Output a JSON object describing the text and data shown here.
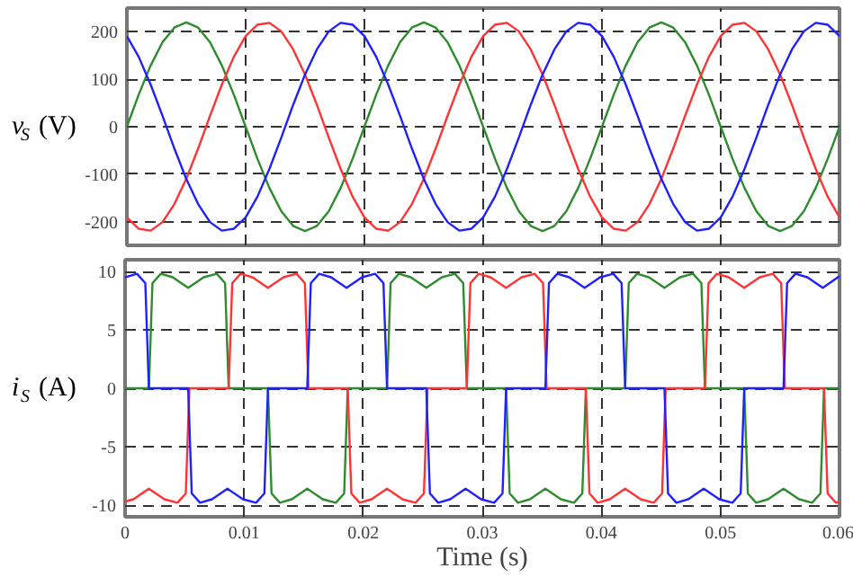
{
  "chart_data": [
    {
      "type": "line",
      "ylabel": "v$_{S}$ (V)",
      "xlim": [
        0,
        0.06
      ],
      "xticks": [
        0,
        0.01,
        0.02,
        0.03,
        0.04,
        0.05,
        0.06
      ],
      "ylim": [
        -250,
        250
      ],
      "yticks": [
        -200,
        -100,
        0,
        100,
        200
      ],
      "grid": true,
      "tick_labels": "y",
      "x": [
        0,
        0.001,
        0.002,
        0.003,
        0.004,
        0.005,
        0.006,
        0.007,
        0.008,
        0.009,
        0.01,
        0.011,
        0.012,
        0.013,
        0.014,
        0.015,
        0.016,
        0.017,
        0.018,
        0.019,
        0.02,
        0.021,
        0.022,
        0.023,
        0.024,
        0.025,
        0.026,
        0.027,
        0.028,
        0.029,
        0.03,
        0.031,
        0.032,
        0.033,
        0.034,
        0.035,
        0.036,
        0.037,
        0.038,
        0.039,
        0.04,
        0.041,
        0.042,
        0.043,
        0.044,
        0.045,
        0.046,
        0.047,
        0.048,
        0.049,
        0.05,
        0.051,
        0.052,
        0.053,
        0.054,
        0.055,
        0.056,
        0.057,
        0.058,
        0.059,
        0.06
      ],
      "series": [
        {
          "color": "#2e8b2e",
          "values": [
            0,
            68,
            129,
            178,
            209,
            220,
            209,
            178,
            129,
            68,
            0,
            -68,
            -129,
            -178,
            -209,
            -220,
            -209,
            -178,
            -129,
            -68,
            0,
            68,
            129,
            178,
            209,
            220,
            209,
            178,
            129,
            68,
            0,
            -68,
            -129,
            -178,
            -209,
            -220,
            -209,
            -178,
            -129,
            -68,
            0,
            68,
            129,
            178,
            209,
            220,
            209,
            178,
            129,
            68,
            0,
            -68,
            -129,
            -178,
            -209,
            -220,
            -209,
            -178,
            -129,
            -68,
            0
          ]
        },
        {
          "color": "#ff3333",
          "values": [
            -191,
            -215,
            -219,
            -201,
            -163,
            -110,
            -46,
            23,
            89,
            147,
            191,
            215,
            219,
            201,
            163,
            110,
            46,
            -23,
            -89,
            -147,
            -191,
            -215,
            -219,
            -201,
            -163,
            -110,
            -46,
            23,
            89,
            147,
            191,
            215,
            219,
            201,
            163,
            110,
            46,
            -23,
            -89,
            -147,
            -191,
            -215,
            -219,
            -201,
            -163,
            -110,
            -46,
            23,
            89,
            147,
            191,
            215,
            219,
            201,
            163,
            110,
            46,
            -23,
            -89,
            -147,
            -191
          ]
        },
        {
          "color": "#2020ff",
          "values": [
            191,
            147,
            89,
            23,
            -46,
            -110,
            -163,
            -201,
            -219,
            -215,
            -191,
            -147,
            -89,
            -23,
            46,
            110,
            163,
            201,
            219,
            215,
            191,
            147,
            89,
            23,
            -46,
            -110,
            -163,
            -201,
            -219,
            -215,
            -191,
            -147,
            -89,
            -23,
            46,
            110,
            163,
            201,
            219,
            215,
            191,
            147,
            89,
            23,
            -46,
            -110,
            -163,
            -201,
            -219,
            -215,
            -191,
            -147,
            -89,
            -23,
            46,
            110,
            163,
            201,
            219,
            215,
            191
          ]
        }
      ]
    },
    {
      "type": "line",
      "xlabel": "Time (s)",
      "ylabel": "i$_{S}$ (A)",
      "xlim": [
        0,
        0.06
      ],
      "xticks": [
        0,
        0.01,
        0.02,
        0.03,
        0.04,
        0.05,
        0.06
      ],
      "ylim": [
        -11,
        11
      ],
      "yticks": [
        -10,
        -5,
        0,
        5,
        10
      ],
      "grid": true,
      "series": [
        {
          "color": "#2e8b2e",
          "x": [
            0,
            0.002,
            0.0023,
            0.003,
            0.004,
            0.0053,
            0.0066,
            0.0077,
            0.0084,
            0.0087,
            0.012,
            0.0123,
            0.013,
            0.014,
            0.0153,
            0.0166,
            0.0177,
            0.0184,
            0.0187,
            0.022,
            0.0223,
            0.023,
            0.024,
            0.0253,
            0.0266,
            0.0277,
            0.0284,
            0.0287,
            0.032,
            0.0323,
            0.033,
            0.034,
            0.0353,
            0.0366,
            0.0377,
            0.0384,
            0.0387,
            0.042,
            0.0423,
            0.043,
            0.044,
            0.0453,
            0.0466,
            0.0477,
            0.0484,
            0.0487,
            0.052,
            0.0523,
            0.053,
            0.054,
            0.0553,
            0.0566,
            0.0577,
            0.0584,
            0.0587,
            0.06
          ],
          "values": [
            0,
            0,
            9.0,
            9.8,
            9.5,
            8.6,
            9.5,
            9.8,
            9.0,
            0,
            0,
            -9.0,
            -9.8,
            -9.5,
            -8.6,
            -9.5,
            -9.8,
            -9.0,
            0,
            0,
            9.0,
            9.8,
            9.5,
            8.6,
            9.5,
            9.8,
            9.0,
            0,
            0,
            -9.0,
            -9.8,
            -9.5,
            -8.6,
            -9.5,
            -9.8,
            -9.0,
            0,
            0,
            9.0,
            9.8,
            9.5,
            8.6,
            9.5,
            9.8,
            9.0,
            0,
            0,
            -9.0,
            -9.8,
            -9.5,
            -8.6,
            -9.5,
            -9.8,
            -9.0,
            0,
            0
          ]
        },
        {
          "color": "#ff3333",
          "x": [
            0,
            0.0007,
            0.002,
            0.0033,
            0.0044,
            0.0051,
            0.0054,
            0.0087,
            0.009,
            0.0097,
            0.0107,
            0.012,
            0.0133,
            0.0144,
            0.0151,
            0.0154,
            0.0187,
            0.019,
            0.0197,
            0.0207,
            0.022,
            0.0233,
            0.0244,
            0.0251,
            0.0254,
            0.0287,
            0.029,
            0.0297,
            0.0307,
            0.032,
            0.0333,
            0.0344,
            0.0351,
            0.0354,
            0.0387,
            0.039,
            0.0397,
            0.0407,
            0.042,
            0.0433,
            0.0444,
            0.0451,
            0.0454,
            0.0487,
            0.049,
            0.0497,
            0.0507,
            0.052,
            0.0533,
            0.0544,
            0.0551,
            0.0554,
            0.0587,
            0.059,
            0.0597,
            0.06
          ],
          "values": [
            -9.7,
            -9.5,
            -8.6,
            -9.5,
            -9.8,
            -9.0,
            0,
            0,
            9.0,
            9.8,
            9.5,
            8.6,
            9.5,
            9.8,
            9.0,
            0,
            0,
            -9.0,
            -9.8,
            -9.5,
            -8.6,
            -9.5,
            -9.8,
            -9.0,
            0,
            0,
            9.0,
            9.8,
            9.5,
            8.6,
            9.5,
            9.8,
            9.0,
            0,
            0,
            -9.0,
            -9.8,
            -9.5,
            -8.6,
            -9.5,
            -9.8,
            -9.0,
            0,
            0,
            9.0,
            9.8,
            9.5,
            8.6,
            9.5,
            9.8,
            9.0,
            0,
            0,
            -9.0,
            -9.8,
            -9.7
          ]
        },
        {
          "color": "#2020ff",
          "x": [
            0,
            0.001,
            0.0017,
            0.002,
            0.0053,
            0.0056,
            0.0063,
            0.0073,
            0.0086,
            0.0099,
            0.011,
            0.0117,
            0.012,
            0.0153,
            0.0156,
            0.0163,
            0.0173,
            0.0186,
            0.0199,
            0.021,
            0.0217,
            0.022,
            0.0253,
            0.0256,
            0.0263,
            0.0273,
            0.0286,
            0.0299,
            0.031,
            0.0317,
            0.032,
            0.0353,
            0.0356,
            0.0363,
            0.0373,
            0.0386,
            0.0399,
            0.041,
            0.0417,
            0.042,
            0.0453,
            0.0456,
            0.0463,
            0.0473,
            0.0486,
            0.0499,
            0.051,
            0.0517,
            0.052,
            0.0553,
            0.0556,
            0.0563,
            0.0573,
            0.0586,
            0.06
          ],
          "values": [
            9.5,
            9.8,
            9.0,
            0,
            0,
            -9.0,
            -9.8,
            -9.5,
            -8.6,
            -9.5,
            -9.8,
            -9.0,
            0,
            0,
            9.0,
            9.8,
            9.5,
            8.6,
            9.5,
            9.8,
            9.0,
            0,
            0,
            -9.0,
            -9.8,
            -9.5,
            -8.6,
            -9.5,
            -9.8,
            -9.0,
            0,
            0,
            9.0,
            9.8,
            9.5,
            8.6,
            9.5,
            9.8,
            9.0,
            0,
            0,
            -9.0,
            -9.8,
            -9.5,
            -8.6,
            -9.5,
            -9.8,
            -9.0,
            0,
            0,
            9.0,
            9.8,
            9.5,
            8.6,
            9.6
          ]
        }
      ]
    }
  ]
}
